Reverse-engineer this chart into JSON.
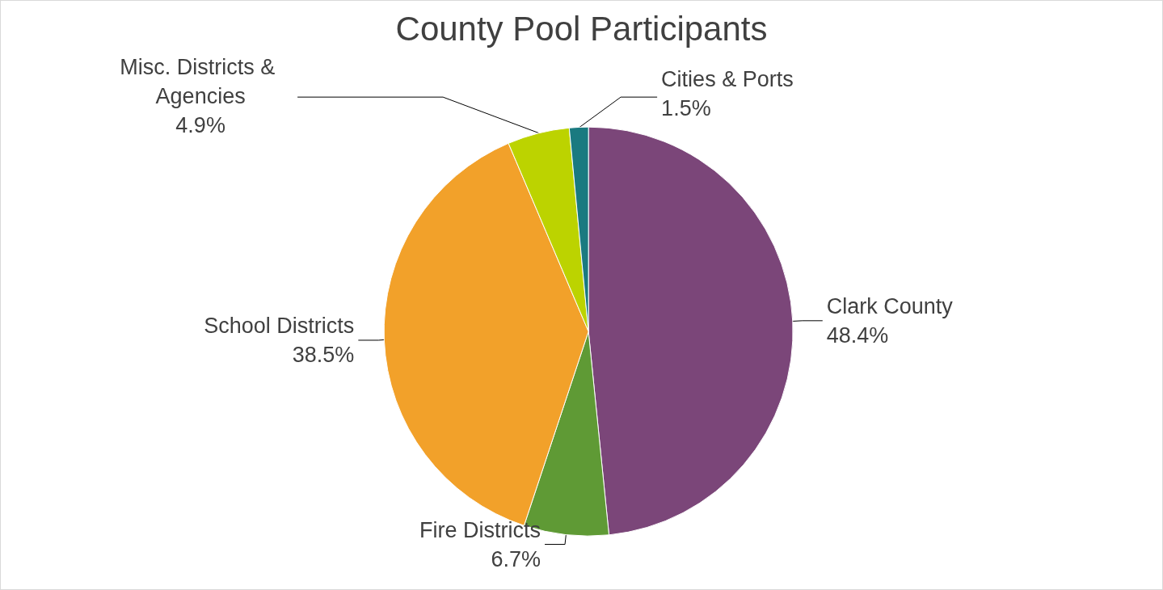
{
  "chart_data": {
    "type": "pie",
    "title": "County Pool Participants",
    "categories": [
      "Clark County",
      "Fire Districts",
      "School Districts",
      "Misc. Districts & Agencies",
      "Cities & Ports"
    ],
    "values": [
      48.4,
      6.7,
      38.5,
      4.9,
      1.5
    ],
    "colors": [
      "#7b4679",
      "#5f9a35",
      "#f2a12a",
      "#bcd300",
      "#1a7a80"
    ],
    "value_labels": [
      "48.4%",
      "6.7%",
      "38.5%",
      "4.9%",
      "1.5%"
    ],
    "legend": false
  }
}
